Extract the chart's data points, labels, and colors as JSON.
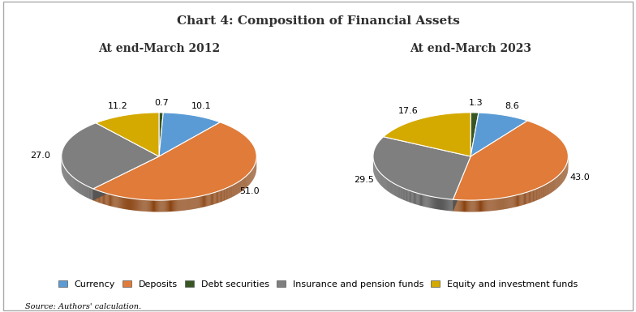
{
  "title": "Chart 4: Composition of Financial Assets",
  "chart1_title": "At end-March 2012",
  "chart2_title": "At end-March 2023",
  "categories": [
    "Currency",
    "Deposits",
    "Debt securities",
    "Insurance and pension funds",
    "Equity and investment funds"
  ],
  "colors": [
    "#5B9BD5",
    "#E07B39",
    "#375623",
    "#7F7F7F",
    "#D4A900"
  ],
  "dark_colors": [
    "#3A6E99",
    "#8B4513",
    "#1E3A12",
    "#555555",
    "#8B6914"
  ],
  "chart1_values": [
    10.1,
    51.0,
    0.7,
    27.0,
    11.2
  ],
  "chart2_values": [
    8.6,
    43.0,
    1.3,
    29.5,
    17.6
  ],
  "source_text": "Source: Authors' calculation.",
  "bg_color": "#FFFFFF",
  "title_fontsize": 11,
  "label_fontsize": 8,
  "legend_fontsize": 8,
  "subtitle_fontsize": 10,
  "pie_depth": 0.15,
  "pie_tilt": 0.45
}
